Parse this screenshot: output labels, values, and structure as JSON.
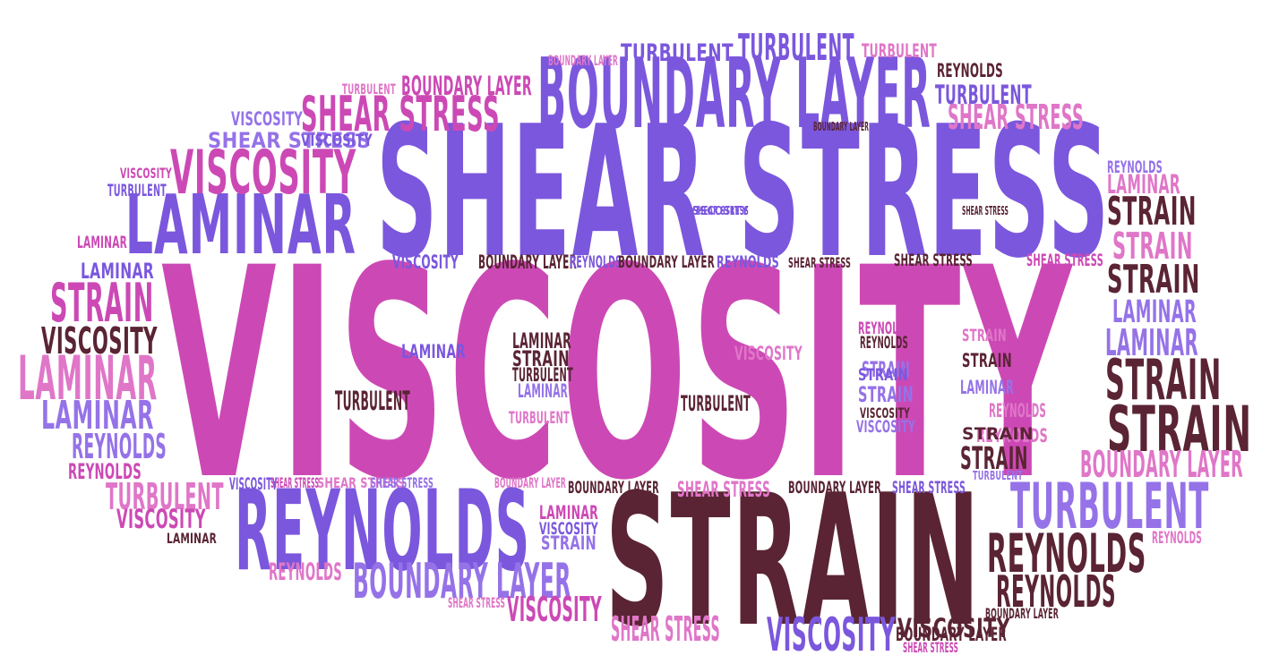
{
  "palette": {
    "violet": "#7b57dd",
    "pink": "#cc49b5",
    "maroon": "#5a2434",
    "lilac": "#9572e8",
    "rose": "#e076c8"
  },
  "words": [
    {
      "text": "VISCOSITY",
      "color": "pink"
    },
    {
      "text": "SHEAR STRESS",
      "color": "violet"
    },
    {
      "text": "STRAIN",
      "color": "maroon"
    },
    {
      "text": "REYNOLDS",
      "color": "violet"
    },
    {
      "text": "BOUNDARY LAYER",
      "color": "violet"
    },
    {
      "text": "LAMINAR",
      "color": "violet"
    },
    {
      "text": "VISCOSITY",
      "color": "pink"
    },
    {
      "text": "SHEAR STRESS",
      "color": "pink"
    },
    {
      "text": "TURBULENT",
      "color": "violet"
    },
    {
      "text": "TURBULENT",
      "color": "lilac"
    },
    {
      "text": "STRAIN",
      "color": "maroon"
    },
    {
      "text": "STRAIN",
      "color": "maroon"
    },
    {
      "text": "REYNOLDS",
      "color": "maroon"
    },
    {
      "text": "REYNOLDS",
      "color": "maroon"
    },
    {
      "text": "BOUNDARY LAYER",
      "color": "lilac"
    },
    {
      "text": "LAMINAR",
      "color": "rose"
    },
    {
      "text": "STRAIN",
      "color": "pink"
    },
    {
      "text": "VISCOSITY",
      "color": "violet"
    },
    {
      "text": "BOUNDARY LAYER",
      "color": "rose"
    },
    {
      "text": "STRAIN",
      "color": "maroon"
    },
    {
      "text": "VISCOSITY",
      "color": "maroon"
    },
    {
      "text": "LAMINAR",
      "color": "lilac"
    },
    {
      "text": "SHEAR STRESS",
      "color": "rose"
    },
    {
      "text": "TURBULENT",
      "color": "violet"
    },
    {
      "text": "VISCOSITY",
      "color": "pink"
    },
    {
      "text": "SHEAR STRESS",
      "color": "rose"
    },
    {
      "text": "STRAIN",
      "color": "maroon"
    },
    {
      "text": "STRAIN",
      "color": "maroon"
    },
    {
      "text": "STRAIN",
      "color": "rose"
    },
    {
      "text": "LAMINAR",
      "color": "lilac"
    },
    {
      "text": "LAMINAR",
      "color": "lilac"
    },
    {
      "text": "REYNOLDS",
      "color": "lilac"
    },
    {
      "text": "TURBULENT",
      "color": "rose"
    },
    {
      "text": "TURBULENT",
      "color": "maroon"
    },
    {
      "text": "VISCOSITY",
      "color": "maroon"
    },
    {
      "text": "TURBULENT",
      "color": "rose"
    },
    {
      "text": "BOUNDARY LAYER",
      "color": "pink"
    },
    {
      "text": "SHEAR STRESS",
      "color": "lilac"
    },
    {
      "text": "TURBULENT",
      "color": "violet"
    },
    {
      "text": "VISCOSITY",
      "color": "lilac"
    },
    {
      "text": "REYNOLDS",
      "color": "rose"
    },
    {
      "text": "LAMINAR",
      "color": "rose"
    },
    {
      "text": "REYNOLDS",
      "color": "maroon"
    },
    {
      "text": "REYNOLDS",
      "color": "rose"
    },
    {
      "text": "VISCOSITY",
      "color": "pink"
    },
    {
      "text": "LAMINAR",
      "color": "pink"
    },
    {
      "text": "STRAIN",
      "color": "maroon"
    },
    {
      "text": "BOUNDARY LAYER",
      "color": "maroon"
    },
    {
      "text": "SHEAR STRESS",
      "color": "pink"
    },
    {
      "text": "VISCOSITY",
      "color": "violet"
    },
    {
      "text": "BOUNDARY LAYER",
      "color": "maroon"
    },
    {
      "text": "SHEAR STRESS",
      "color": "maroon"
    },
    {
      "text": "REYNOLDS",
      "color": "violet"
    },
    {
      "text": "BOUNDARY LAYER",
      "color": "maroon"
    },
    {
      "text": "REYNOLDS",
      "color": "violet"
    },
    {
      "text": "SHEAR STRESS",
      "color": "maroon"
    },
    {
      "text": "SHEAR STRESS",
      "color": "rose"
    },
    {
      "text": "REYNOLDS",
      "color": "rose"
    },
    {
      "text": "STRAIN",
      "color": "lilac"
    },
    {
      "text": "STRAIN",
      "color": "lilac"
    },
    {
      "text": "TURBULENT",
      "color": "maroon"
    },
    {
      "text": "TURBULENT",
      "color": "maroon"
    },
    {
      "text": "LAMINAR",
      "color": "maroon"
    },
    {
      "text": "STRAIN",
      "color": "lilac"
    },
    {
      "text": "LAMINAR",
      "color": "lilac"
    },
    {
      "text": "TURBULENT",
      "color": "rose"
    },
    {
      "text": "VISCOSITY",
      "color": "rose"
    },
    {
      "text": "STRAIN",
      "color": "maroon"
    },
    {
      "text": "REYNOLDS",
      "color": "maroon"
    },
    {
      "text": "REYNOLDS",
      "color": "pink"
    },
    {
      "text": "LAMINAR",
      "color": "lilac"
    },
    {
      "text": "STRAIN",
      "color": "rose"
    },
    {
      "text": "REYNOLDS",
      "color": "rose"
    },
    {
      "text": "LAMINAR",
      "color": "violet"
    },
    {
      "text": "VISCOSITY",
      "color": "maroon"
    },
    {
      "text": "VISCOSITY",
      "color": "lilac"
    },
    {
      "text": "TURBULENT",
      "color": "lilac"
    },
    {
      "text": "STRAIN",
      "color": "maroon"
    },
    {
      "text": "LAMINAR",
      "color": "violet"
    },
    {
      "text": "BOUNDARY LAYER",
      "color": "rose"
    },
    {
      "text": "SHEAR STRESS",
      "color": "violet"
    },
    {
      "text": "SHEAR STRESS",
      "color": "pink"
    },
    {
      "text": "BOUNDARY LAYER",
      "color": "maroon"
    },
    {
      "text": "SHEAR STRESS",
      "color": "rose"
    },
    {
      "text": "BOUNDARY LAYER",
      "color": "rose"
    },
    {
      "text": "BOUNDARY LAYER",
      "color": "maroon"
    },
    {
      "text": "SHEAR STRESS",
      "color": "lilac"
    },
    {
      "text": "VISCOSITY",
      "color": "violet"
    },
    {
      "text": "SHEAR STRESS",
      "color": "violet"
    },
    {
      "text": "TURBULENT",
      "color": "rose"
    },
    {
      "text": "VISCOSITY",
      "color": "pink"
    },
    {
      "text": "LAMINAR",
      "color": "maroon"
    },
    {
      "text": "REYNOLDS",
      "color": "pink"
    },
    {
      "text": "LAMINAR",
      "color": "pink"
    },
    {
      "text": "VISCOSITY",
      "color": "violet"
    },
    {
      "text": "STRAIN",
      "color": "violet"
    },
    {
      "text": "SHEAR STRESS",
      "color": "pink"
    },
    {
      "text": "VISCOSITY",
      "color": "violet"
    },
    {
      "text": "SHEAR STRESS",
      "color": "rose"
    },
    {
      "text": "SHEAR STRESS",
      "color": "pink"
    },
    {
      "text": "VISCOSITY",
      "color": "violet"
    },
    {
      "text": "BOUNDARY LAYER",
      "color": "maroon"
    },
    {
      "text": "SHEAR STRESS",
      "color": "maroon"
    },
    {
      "text": "BOUNDARY LAYER",
      "color": "maroon"
    },
    {
      "text": "REYNOLDS",
      "color": "lilac"
    },
    {
      "text": "TURBULENT",
      "color": "violet"
    },
    {
      "text": "LAMINAR",
      "color": "violet"
    },
    {
      "text": "LAMINAR",
      "color": "violet"
    },
    {
      "text": "REYNOLDS",
      "color": "maroon"
    },
    {
      "text": "REYNOLDS",
      "color": "maroon"
    }
  ]
}
